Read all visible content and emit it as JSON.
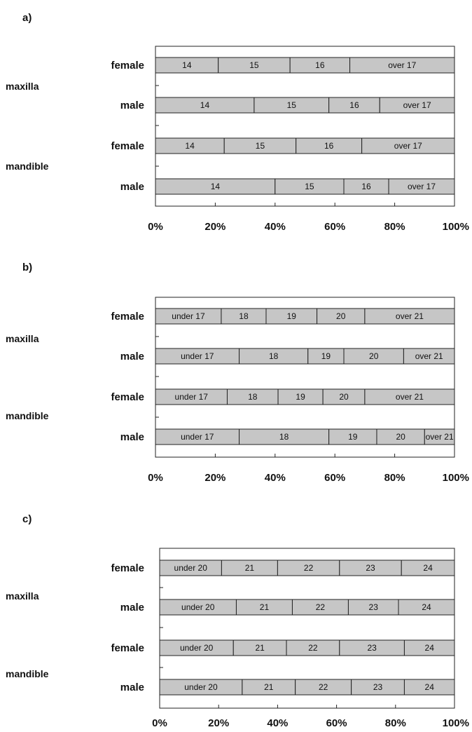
{
  "colors": {
    "bar_fill": "#c6c6c6",
    "frame": "#222222",
    "text": "#111111"
  },
  "chart_data": [
    {
      "type": "bar",
      "orientation": "horizontal-stacked-100",
      "panel_label": "a)",
      "xlim": [
        0,
        100
      ],
      "x_ticks": [
        "0%",
        "20%",
        "40%",
        "60%",
        "80%",
        "100%"
      ],
      "groups": [
        {
          "label": "maxilla",
          "rows": [
            0,
            1
          ]
        },
        {
          "label": "mandible",
          "rows": [
            2,
            3
          ]
        }
      ],
      "rows": [
        {
          "label": "female",
          "segments": [
            {
              "label": "14",
              "value": 21
            },
            {
              "label": "15",
              "value": 24
            },
            {
              "label": "16",
              "value": 20
            },
            {
              "label": "over 17",
              "value": 35
            }
          ]
        },
        {
          "label": "male",
          "segments": [
            {
              "label": "14",
              "value": 33
            },
            {
              "label": "15",
              "value": 25
            },
            {
              "label": "16",
              "value": 17
            },
            {
              "label": "over 17",
              "value": 25
            }
          ]
        },
        {
          "label": "female",
          "segments": [
            {
              "label": "14",
              "value": 23
            },
            {
              "label": "15",
              "value": 24
            },
            {
              "label": "16",
              "value": 22
            },
            {
              "label": "over 17",
              "value": 31
            }
          ]
        },
        {
          "label": "male",
          "segments": [
            {
              "label": "14",
              "value": 40
            },
            {
              "label": "15",
              "value": 23
            },
            {
              "label": "16",
              "value": 15
            },
            {
              "label": "over 17",
              "value": 22
            }
          ]
        }
      ]
    },
    {
      "type": "bar",
      "orientation": "horizontal-stacked-100",
      "panel_label": "b)",
      "xlim": [
        0,
        100
      ],
      "x_ticks": [
        "0%",
        "20%",
        "40%",
        "60%",
        "80%",
        "100%"
      ],
      "groups": [
        {
          "label": "maxilla",
          "rows": [
            0,
            1
          ]
        },
        {
          "label": "mandible",
          "rows": [
            2,
            3
          ]
        }
      ],
      "rows": [
        {
          "label": "female",
          "segments": [
            {
              "label": "under 17",
              "value": 22
            },
            {
              "label": "18",
              "value": 15
            },
            {
              "label": "19",
              "value": 17
            },
            {
              "label": "20",
              "value": 16
            },
            {
              "label": "over 21",
              "value": 30
            }
          ]
        },
        {
          "label": "male",
          "segments": [
            {
              "label": "under 17",
              "value": 28
            },
            {
              "label": "18",
              "value": 23
            },
            {
              "label": "19",
              "value": 12
            },
            {
              "label": "20",
              "value": 20
            },
            {
              "label": "over 21",
              "value": 17
            }
          ]
        },
        {
          "label": "female",
          "segments": [
            {
              "label": "under 17",
              "value": 24
            },
            {
              "label": "18",
              "value": 17
            },
            {
              "label": "19",
              "value": 15
            },
            {
              "label": "20",
              "value": 14
            },
            {
              "label": "over 21",
              "value": 30
            }
          ]
        },
        {
          "label": "male",
          "segments": [
            {
              "label": "under 17",
              "value": 28
            },
            {
              "label": "18",
              "value": 30
            },
            {
              "label": "19",
              "value": 16
            },
            {
              "label": "20",
              "value": 16
            },
            {
              "label": "over 21",
              "value": 10
            }
          ]
        }
      ]
    },
    {
      "type": "bar",
      "orientation": "horizontal-stacked-100",
      "panel_label": "c)",
      "xlim": [
        0,
        100
      ],
      "x_ticks": [
        "0%",
        "20%",
        "40%",
        "60%",
        "80%",
        "100%"
      ],
      "groups": [
        {
          "label": "maxilla",
          "rows": [
            0,
            1
          ]
        },
        {
          "label": "mandible",
          "rows": [
            2,
            3
          ]
        }
      ],
      "rows": [
        {
          "label": "female",
          "segments": [
            {
              "label": "under 20",
              "value": 21
            },
            {
              "label": "21",
              "value": 19
            },
            {
              "label": "22",
              "value": 21
            },
            {
              "label": "23",
              "value": 21
            },
            {
              "label": "24",
              "value": 18
            }
          ]
        },
        {
          "label": "male",
          "segments": [
            {
              "label": "under 20",
              "value": 26
            },
            {
              "label": "21",
              "value": 19
            },
            {
              "label": "22",
              "value": 19
            },
            {
              "label": "23",
              "value": 17
            },
            {
              "label": "24",
              "value": 19
            }
          ]
        },
        {
          "label": "female",
          "segments": [
            {
              "label": "under 20",
              "value": 25
            },
            {
              "label": "21",
              "value": 18
            },
            {
              "label": "22",
              "value": 18
            },
            {
              "label": "23",
              "value": 22
            },
            {
              "label": "24",
              "value": 17
            }
          ]
        },
        {
          "label": "male",
          "segments": [
            {
              "label": "under 20",
              "value": 28
            },
            {
              "label": "21",
              "value": 18
            },
            {
              "label": "22",
              "value": 19
            },
            {
              "label": "23",
              "value": 18
            },
            {
              "label": "24",
              "value": 17
            }
          ]
        }
      ]
    }
  ]
}
